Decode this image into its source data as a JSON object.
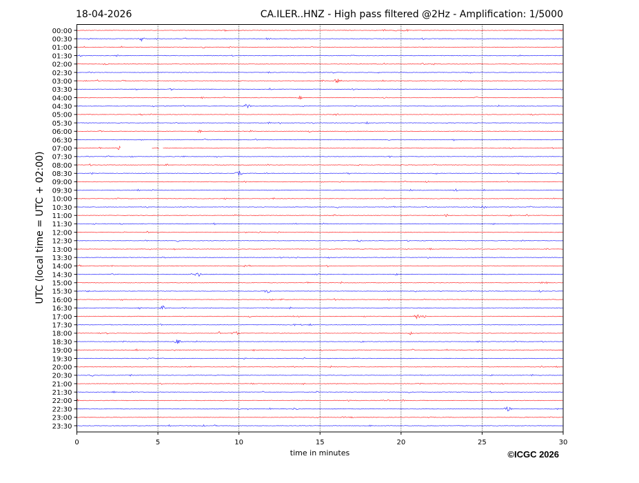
{
  "header": {
    "date": "18-04-2026",
    "title": "CA.ILER..HNZ - High pass filtered @2Hz - Amplification: 1/5000"
  },
  "copyright": "©ICGC 2026",
  "chart_data": {
    "type": "line",
    "title": "CA.ILER..HNZ - High pass filtered @2Hz - Amplification: 1/5000",
    "xlabel": "time in minutes",
    "ylabel": "UTC (local time = UTC + 02:00)",
    "xlim": [
      0,
      30
    ],
    "x_ticks": [
      "0",
      "5",
      "10",
      "15",
      "20",
      "25",
      "30"
    ],
    "x_grid": "dotted vertical lines every 5 minutes",
    "trace_labels": [
      "00:00",
      "00:30",
      "01:00",
      "01:30",
      "02:00",
      "02:30",
      "03:00",
      "03:30",
      "04:00",
      "04:30",
      "05:00",
      "05:30",
      "06:00",
      "06:30",
      "07:00",
      "07:30",
      "08:00",
      "08:30",
      "09:00",
      "09:30",
      "10:00",
      "10:30",
      "11:00",
      "11:30",
      "12:00",
      "12:30",
      "13:00",
      "13:30",
      "14:00",
      "14:30",
      "15:00",
      "15:30",
      "16:00",
      "16:30",
      "17:00",
      "17:30",
      "18:00",
      "18:30",
      "19:00",
      "19:30",
      "20:00",
      "20:30",
      "21:00",
      "21:30",
      "22:00",
      "22:30",
      "23:00",
      "23:30"
    ],
    "trace_colors": [
      "#ff0000",
      "#0000ff"
    ],
    "gaps": [
      {
        "trace": "07:00",
        "from_min": 2.7,
        "to_min": 4.6
      },
      {
        "trace": "07:00",
        "from_min": 5.1,
        "to_min": 5.3
      }
    ],
    "events": [
      {
        "trace": "00:30",
        "minute": 4.0
      },
      {
        "trace": "03:00",
        "minute": 16.1
      },
      {
        "trace": "04:30",
        "minute": 10.5
      },
      {
        "trace": "07:00",
        "minute": 2.65
      },
      {
        "trace": "08:30",
        "minute": 10.0
      },
      {
        "trace": "10:30",
        "minute": 25.1
      },
      {
        "trace": "14:30",
        "minute": 7.5
      },
      {
        "trace": "15:30",
        "minute": 11.8
      },
      {
        "trace": "16:30",
        "minute": 5.3
      },
      {
        "trace": "17:00",
        "minute": 21.0
      },
      {
        "trace": "18:00",
        "minute": 9.8
      },
      {
        "trace": "18:30",
        "minute": 6.2
      },
      {
        "trace": "22:30",
        "minute": 26.6
      }
    ]
  }
}
